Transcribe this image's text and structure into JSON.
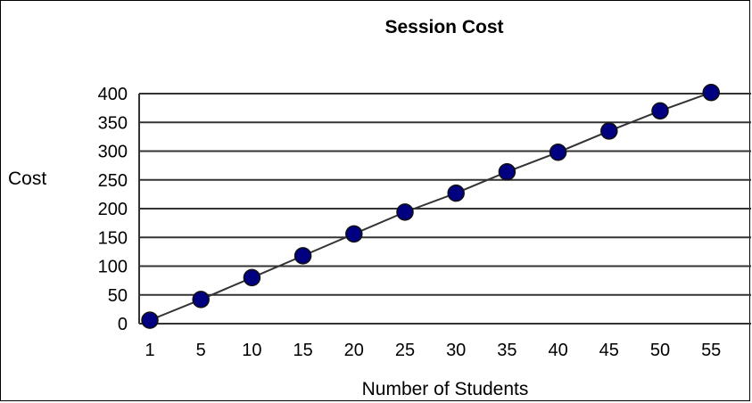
{
  "chart_data": {
    "type": "line",
    "title": "Session Cost",
    "xlabel": "Number of Students",
    "ylabel": "Cost",
    "categories": [
      "1",
      "5",
      "10",
      "15",
      "20",
      "25",
      "30",
      "35",
      "40",
      "45",
      "50",
      "55"
    ],
    "series": [
      {
        "values": [
          6,
          42,
          80,
          118,
          156,
          194,
          227,
          264,
          298,
          335,
          370,
          402
        ],
        "line_color": "#333333",
        "marker_color": "#000080"
      }
    ],
    "ylim": [
      0,
      400
    ],
    "yticks": [
      0,
      50,
      100,
      150,
      200,
      250,
      300,
      350,
      400
    ],
    "grid": "horizontal",
    "grid_color": "#333333"
  }
}
